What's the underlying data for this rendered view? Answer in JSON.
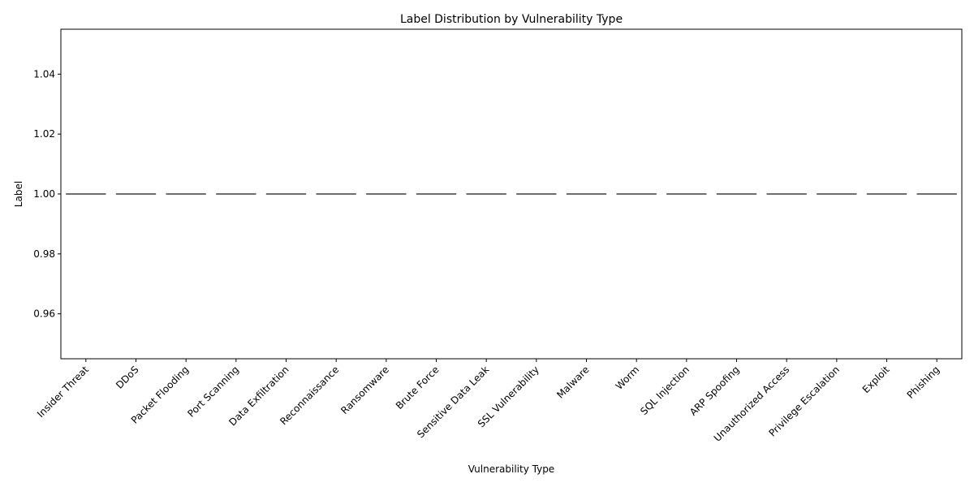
{
  "chart_data": {
    "type": "box",
    "title": "Label Distribution by Vulnerability Type",
    "xlabel": "Vulnerability Type",
    "ylabel": "Label",
    "categories": [
      "Insider Threat",
      "DDoS",
      "Packet Flooding",
      "Port Scanning",
      "Data Exfiltration",
      "Reconnaissance",
      "Ransomware",
      "Brute Force",
      "Sensitive Data Leak",
      "SSL Vulnerability",
      "Malware",
      "Worm",
      "SQL Injection",
      "ARP Spoofing",
      "Unauthorized Access",
      "Privilege Escalation",
      "Exploit",
      "Phishing"
    ],
    "values": [
      1,
      1,
      1,
      1,
      1,
      1,
      1,
      1,
      1,
      1,
      1,
      1,
      1,
      1,
      1,
      1,
      1,
      1
    ],
    "ylim": [
      0.945,
      1.055
    ],
    "yticks": [
      0.96,
      0.98,
      1.0,
      1.02,
      1.04
    ],
    "ytick_labels": [
      "0.96",
      "0.98",
      "1.00",
      "1.02",
      "1.04"
    ],
    "xtick_rotation": 45,
    "grid": false,
    "colors": {
      "box_line": "#3f3f3f",
      "axis": "#000000"
    }
  }
}
